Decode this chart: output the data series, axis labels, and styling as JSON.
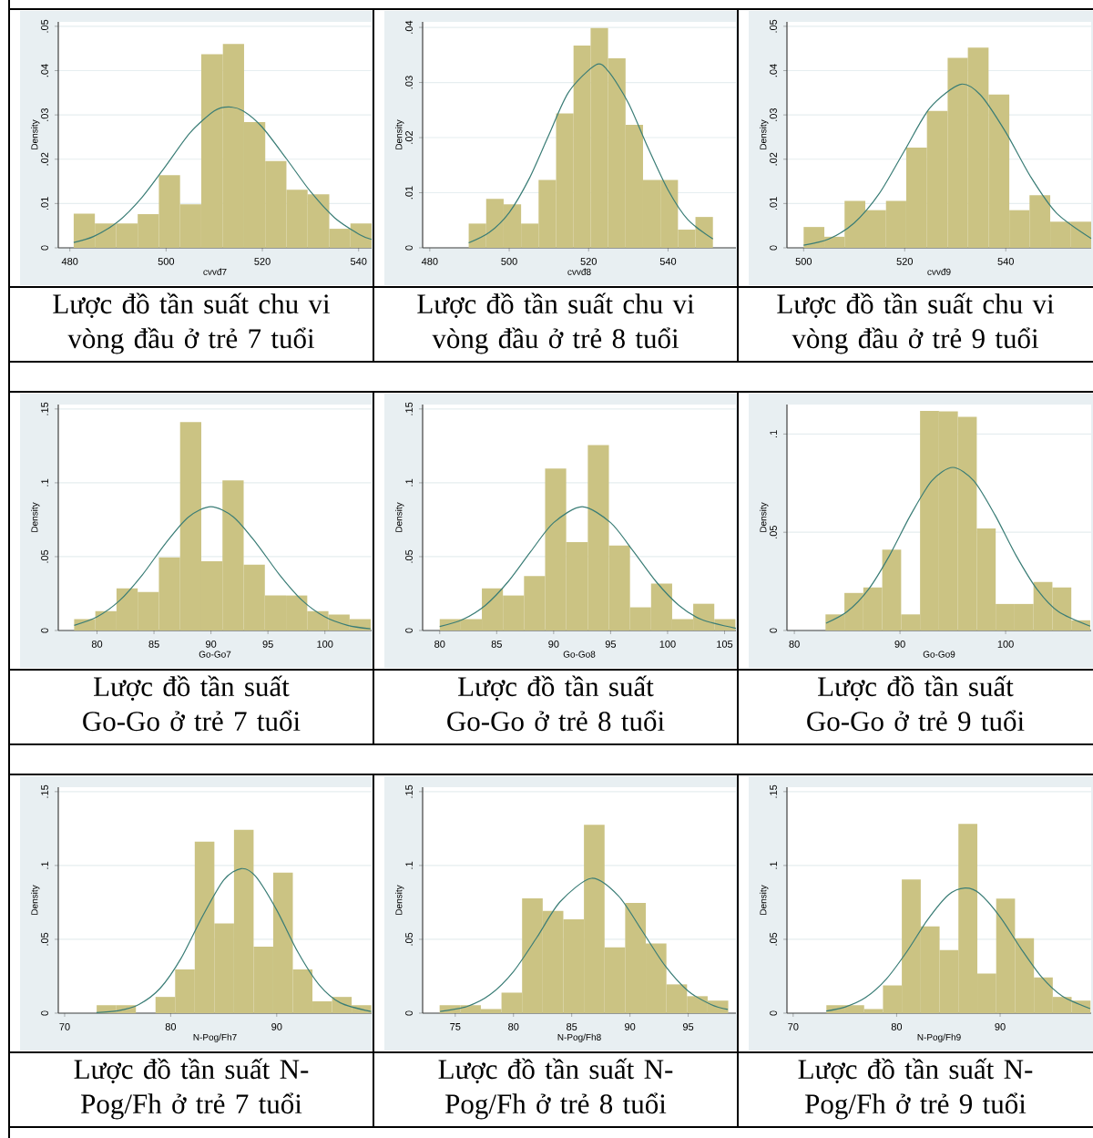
{
  "chart_data": [
    {
      "type": "histogram",
      "title": "Lược đồ tần suất chu vi vòng đầu ở trẻ 7 tuổi",
      "xlabel": "cvvđ7",
      "ylabel": "Density",
      "xlim": [
        477.6,
        542.7
      ],
      "ylim": [
        0,
        0.051
      ],
      "xticks": [
        480,
        500,
        520,
        540
      ],
      "yticks": [
        0,
        {
          "value": 0.01,
          "label": ".01"
        },
        {
          "value": 0.02,
          "label": ".02"
        },
        {
          "value": 0.03,
          "label": ".03"
        },
        {
          "value": 0.04,
          "label": ".04"
        },
        {
          "value": 0.05,
          "label": ".05"
        }
      ],
      "grid": "y",
      "series": [
        {
          "type": "histogram",
          "color": "#cbc383",
          "bins": [
            480.8,
            485.2,
            489.6,
            494.1,
            498.5,
            502.9,
            507.3,
            511.8,
            516.2,
            520.6,
            525.0,
            529.4,
            533.9,
            538.3,
            542.7
          ],
          "values": [
            0.0077,
            0.0055,
            0.0055,
            0.0076,
            0.0164,
            0.0098,
            0.0437,
            0.046,
            0.0284,
            0.0196,
            0.0131,
            0.0121,
            0.0043,
            0.0055
          ]
        },
        {
          "type": "line",
          "color": "#3a7d76",
          "x": [
            480.8,
            485,
            490,
            495,
            500,
            505,
            510,
            513,
            516,
            520,
            525,
            530,
            535,
            540.2,
            542.7
          ],
          "values": [
            0.0012,
            0.0026,
            0.0059,
            0.0114,
            0.0186,
            0.026,
            0.0309,
            0.0318,
            0.0309,
            0.0272,
            0.0201,
            0.0127,
            0.0068,
            0.003,
            0.0019
          ]
        }
      ]
    },
    {
      "type": "histogram",
      "title": "Lược đồ tần suất chu vi vòng đầu ở trẻ 8 tuổi",
      "xlabel": "cvvđ8",
      "ylabel": "Density",
      "xlim": [
        478.2,
        557.1
      ],
      "ylim": [
        0,
        0.041
      ],
      "xticks": [
        480,
        500,
        520,
        540
      ],
      "yticks": [
        0,
        {
          "value": 0.01,
          "label": ".01"
        },
        {
          "value": 0.02,
          "label": ".02"
        },
        {
          "value": 0.03,
          "label": ".03"
        },
        {
          "value": 0.04,
          "label": ".04"
        }
      ],
      "grid": "y",
      "series": [
        {
          "type": "histogram",
          "color": "#cbc383",
          "bins": [
            489.8,
            494.2,
            498.6,
            503.0,
            507.4,
            511.8,
            516.2,
            520.5,
            524.9,
            529.3,
            533.7,
            538.1,
            542.5,
            546.9,
            551.3
          ],
          "values": [
            0.0044,
            0.0089,
            0.0079,
            0.0044,
            0.0123,
            0.0244,
            0.0367,
            0.0399,
            0.0344,
            0.0223,
            0.0123,
            0.0123,
            0.0033,
            0.0056
          ]
        },
        {
          "type": "line",
          "color": "#3a7d76",
          "x": [
            489.8,
            495,
            500,
            505,
            510,
            515,
            521.8,
            525,
            530,
            535,
            540,
            545,
            551.3
          ],
          "values": [
            0.0009,
            0.0028,
            0.0064,
            0.0125,
            0.0205,
            0.0283,
            0.0332,
            0.032,
            0.0263,
            0.0181,
            0.0105,
            0.0051,
            0.0016
          ]
        }
      ]
    },
    {
      "type": "histogram",
      "title": "Lược đồ tần suất chu vi vòng đầu ở trẻ 9 tuổi",
      "xlabel": "cvvđ9",
      "ylabel": "Density",
      "xlim": [
        496.7,
        556.9
      ],
      "ylim": [
        0,
        0.051
      ],
      "xticks": [
        500,
        520,
        540
      ],
      "yticks": [
        0,
        {
          "value": 0.01,
          "label": ".01"
        },
        {
          "value": 0.02,
          "label": ".02"
        },
        {
          "value": 0.03,
          "label": ".03"
        },
        {
          "value": 0.04,
          "label": ".04"
        },
        {
          "value": 0.05,
          "label": ".05"
        }
      ],
      "grid": "y",
      "series": [
        {
          "type": "histogram",
          "color": "#cbc383",
          "bins": [
            500.0,
            504.1,
            508.1,
            512.2,
            516.3,
            520.3,
            524.4,
            528.5,
            532.5,
            536.6,
            540.7,
            544.7,
            548.8,
            552.9,
            556.9
          ],
          "values": [
            0.0047,
            0.0025,
            0.0106,
            0.0085,
            0.0106,
            0.0226,
            0.0309,
            0.0429,
            0.0452,
            0.0346,
            0.0085,
            0.0119,
            0.0059,
            0.0059
          ]
        },
        {
          "type": "line",
          "color": "#3a7d76",
          "x": [
            500,
            505,
            510,
            515,
            520,
            525,
            531,
            535,
            540,
            545,
            550,
            556.9
          ],
          "values": [
            0.0006,
            0.002,
            0.0056,
            0.0123,
            0.022,
            0.0316,
            0.0369,
            0.0345,
            0.0261,
            0.0159,
            0.0079,
            0.0021
          ]
        }
      ]
    },
    {
      "type": "histogram",
      "title": "Lược đồ tần suất Go-Go ở trẻ 7 tuổi",
      "xlabel": "Go-Go7",
      "ylabel": "Density",
      "xlim": [
        76.6,
        104.1
      ],
      "ylim": [
        0,
        0.153
      ],
      "xticks": [
        80,
        85,
        90,
        95,
        100
      ],
      "yticks": [
        0,
        {
          "value": 0.05,
          "label": ".05"
        },
        {
          "value": 0.1,
          "label": ".1"
        },
        {
          "value": 0.15,
          "label": ".15"
        }
      ],
      "grid": "y",
      "series": [
        {
          "type": "histogram",
          "color": "#cbc383",
          "bins": [
            77.99,
            79.85,
            81.71,
            83.57,
            85.43,
            87.29,
            89.15,
            91.01,
            92.87,
            94.73,
            96.59,
            98.45,
            100.31,
            102.17,
            104.03
          ],
          "values": [
            0.0077,
            0.0131,
            0.0286,
            0.0261,
            0.0495,
            0.1411,
            0.0469,
            0.1016,
            0.0446,
            0.0237,
            0.0237,
            0.0131,
            0.0108,
            0.0077
          ]
        },
        {
          "type": "line",
          "color": "#3a7d76",
          "x": [
            78,
            80,
            82,
            84,
            86,
            88,
            90,
            92,
            94,
            96,
            98,
            100,
            102,
            104
          ],
          "values": [
            0.0035,
            0.0092,
            0.0204,
            0.0379,
            0.0589,
            0.0767,
            0.0838,
            0.0767,
            0.0589,
            0.0379,
            0.0204,
            0.0092,
            0.0035,
            0.0011
          ]
        }
      ]
    },
    {
      "type": "histogram",
      "title": "Lược đồ tần suất Go-Go ở trẻ 8 tuổi",
      "xlabel": "Go-Go8",
      "ylabel": "Density",
      "xlim": [
        78.5,
        106.0
      ],
      "ylim": [
        0,
        0.153
      ],
      "xticks": [
        80,
        85,
        90,
        95,
        100,
        105
      ],
      "yticks": [
        0,
        {
          "value": 0.05,
          "label": ".05"
        },
        {
          "value": 0.1,
          "label": ".1"
        },
        {
          "value": 0.15,
          "label": ".15"
        }
      ],
      "grid": "y",
      "series": [
        {
          "type": "histogram",
          "color": "#cbc383",
          "bins": [
            80.0,
            81.85,
            83.7,
            85.55,
            87.4,
            89.25,
            91.1,
            93.0,
            94.85,
            96.7,
            98.55,
            100.4,
            102.25,
            104.1,
            105.95
          ],
          "values": [
            0.0077,
            0.0077,
            0.0286,
            0.0237,
            0.0369,
            0.1096,
            0.0599,
            0.1256,
            0.0575,
            0.0157,
            0.0317,
            0.0077,
            0.0181,
            0.0077
          ]
        },
        {
          "type": "line",
          "color": "#3a7d76",
          "x": [
            80,
            82,
            84,
            86,
            88,
            90,
            92.5,
            95,
            97,
            99,
            101,
            103,
            106
          ],
          "values": [
            0.0027,
            0.0074,
            0.017,
            0.033,
            0.0536,
            0.073,
            0.0838,
            0.073,
            0.0536,
            0.033,
            0.017,
            0.0074,
            0.0015
          ]
        }
      ]
    },
    {
      "type": "histogram",
      "title": "Lược đồ tần suất Go-Go ở trẻ 9 tuổi",
      "xlabel": "Go-Go9",
      "ylabel": "Density",
      "xlim": [
        79.3,
        108.1
      ],
      "ylim": [
        0,
        0.115
      ],
      "xticks": [
        80,
        90,
        100
      ],
      "yticks": [
        0,
        {
          "value": 0.05,
          "label": ".05"
        },
        {
          "value": 0.1,
          "label": ".1"
        }
      ],
      "grid": "y",
      "series": [
        {
          "type": "histogram",
          "color": "#cbc383",
          "bins": [
            82.95,
            84.74,
            86.53,
            88.32,
            90.11,
            91.9,
            93.69,
            95.48,
            97.27,
            99.06,
            100.85,
            102.64,
            104.43,
            106.22,
            108.01
          ],
          "values": [
            0.0082,
            0.0191,
            0.0219,
            0.0411,
            0.0082,
            0.1117,
            0.1115,
            0.1087,
            0.0519,
            0.0135,
            0.0135,
            0.0247,
            0.0219,
            0.0052
          ]
        },
        {
          "type": "line",
          "color": "#3a7d76",
          "x": [
            83,
            85,
            87,
            89,
            91,
            93,
            95,
            97,
            99,
            101,
            103,
            105,
            108
          ],
          "values": [
            0.0037,
            0.0096,
            0.0208,
            0.0381,
            0.0587,
            0.0761,
            0.083,
            0.0761,
            0.0587,
            0.0381,
            0.0208,
            0.0096,
            0.0022
          ]
        }
      ]
    },
    {
      "type": "histogram",
      "title": "Lược đồ tần suất N-Pog/Fh ở trẻ 7 tuổi",
      "xlabel": "N-Pog/Fh7",
      "ylabel": "Density",
      "xlim": [
        69.4,
        98.95
      ],
      "ylim": [
        0,
        0.153
      ],
      "xticks": [
        70,
        80,
        90
      ],
      "yticks": [
        0,
        {
          "value": 0.05,
          "label": ".05"
        },
        {
          "value": 0.1,
          "label": ".1"
        },
        {
          "value": 0.15,
          "label": ".15"
        }
      ],
      "grid": "y",
      "series": [
        {
          "type": "histogram",
          "color": "#cbc383",
          "bins": [
            73.02,
            74.87,
            76.72,
            78.57,
            80.42,
            82.27,
            84.12,
            85.97,
            87.82,
            89.67,
            91.52,
            93.37,
            95.22,
            97.07,
            98.92
          ],
          "values": [
            0.0054,
            0.0054,
            0,
            0.011,
            0.0296,
            0.1162,
            0.0608,
            0.1242,
            0.0451,
            0.0951,
            0.0296,
            0.008,
            0.011,
            0.0054
          ]
        },
        {
          "type": "line",
          "color": "#3a7d76",
          "x": [
            73,
            75,
            77,
            79,
            81,
            83,
            85,
            86.65,
            88,
            90,
            92,
            94,
            96,
            98.9
          ],
          "values": [
            0.0004,
            0.0016,
            0.0059,
            0.0168,
            0.0374,
            0.0656,
            0.0902,
            0.0979,
            0.0927,
            0.0698,
            0.0413,
            0.0192,
            0.007,
            0.0011
          ]
        }
      ]
    },
    {
      "type": "histogram",
      "title": "Lược đồ tần suất N-Pog/Fh ở trẻ 8 tuổi",
      "xlabel": "N-Pog/Fh8",
      "ylabel": "Density",
      "xlim": [
        72.2,
        99.1
      ],
      "ylim": [
        0,
        0.153
      ],
      "xticks": [
        75,
        80,
        85,
        90,
        95
      ],
      "yticks": [
        0,
        {
          "value": 0.05,
          "label": ".05"
        },
        {
          "value": 0.1,
          "label": ".1"
        },
        {
          "value": 0.15,
          "label": ".15"
        }
      ],
      "grid": "y",
      "series": [
        {
          "type": "histogram",
          "color": "#cbc383",
          "bins": [
            73.66,
            75.43,
            77.2,
            78.97,
            80.74,
            82.51,
            84.28,
            86.05,
            87.82,
            89.59,
            91.36,
            93.13,
            94.9,
            96.67,
            98.44
          ],
          "values": [
            0.0054,
            0.0054,
            0.0028,
            0.0139,
            0.0777,
            0.0692,
            0.0636,
            0.1275,
            0.0446,
            0.0746,
            0.0472,
            0.0195,
            0.0115,
            0.0085
          ]
        },
        {
          "type": "line",
          "color": "#3a7d76",
          "x": [
            73.7,
            76,
            78,
            80,
            82,
            84,
            86.7,
            89,
            91,
            93,
            95,
            97,
            98.4
          ],
          "values": [
            0.0011,
            0.0045,
            0.0126,
            0.0282,
            0.0512,
            0.0754,
            0.0913,
            0.0795,
            0.0563,
            0.0323,
            0.015,
            0.0057,
            0.0025
          ]
        }
      ]
    },
    {
      "type": "histogram",
      "title": "Lược đồ tần suất N-Pog/Fh ở trẻ 9 tuổi",
      "xlabel": "N-Pog/Fh9",
      "ylabel": "Density",
      "xlim": [
        69.4,
        98.8
      ],
      "ylim": [
        0,
        0.153
      ],
      "xticks": [
        70,
        80,
        90
      ],
      "yticks": [
        0,
        {
          "value": 0.05,
          "label": ".05"
        },
        {
          "value": 0.1,
          "label": ".1"
        },
        {
          "value": 0.15,
          "label": ".15"
        }
      ],
      "grid": "y",
      "series": [
        {
          "type": "histogram",
          "color": "#cbc383",
          "bins": [
            73.21,
            75.03,
            76.86,
            78.68,
            80.5,
            82.33,
            84.15,
            85.97,
            87.8,
            89.62,
            91.44,
            93.27,
            95.09,
            96.91,
            98.74
          ],
          "values": [
            0.0054,
            0.0054,
            0.0028,
            0.0188,
            0.0906,
            0.0587,
            0.0427,
            0.1282,
            0.0268,
            0.0775,
            0.0507,
            0.0242,
            0.011,
            0.0085
          ]
        },
        {
          "type": "line",
          "color": "#3a7d76",
          "x": [
            73.2,
            75,
            77,
            79,
            81,
            83,
            85,
            86.6,
            88,
            90,
            92,
            94,
            96,
            98.7
          ],
          "values": [
            0.0015,
            0.0041,
            0.0106,
            0.0231,
            0.0418,
            0.0633,
            0.08,
            0.0847,
            0.0811,
            0.0652,
            0.0439,
            0.0246,
            0.0116,
            0.0031
          ]
        }
      ]
    }
  ]
}
